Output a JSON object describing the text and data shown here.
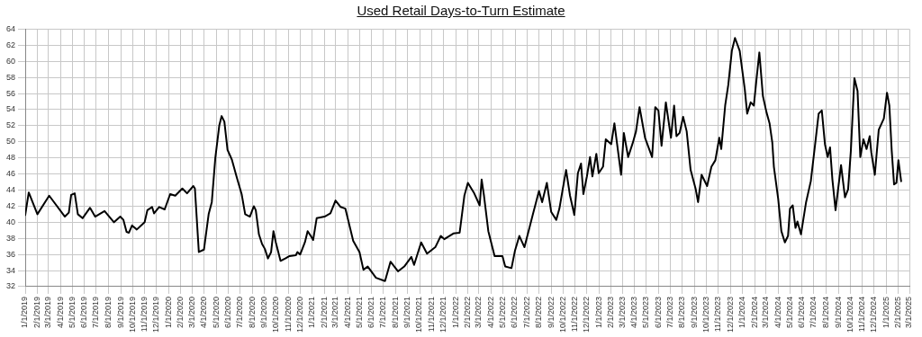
{
  "chart_data": {
    "type": "line",
    "title": "Used Retail Days-to-Turn Estimate",
    "x": [
      "2019-01-01",
      "2019-01-10",
      "2019-02-01",
      "2019-03-03",
      "2019-04-12",
      "2019-04-22",
      "2019-04-28",
      "2019-05-07",
      "2019-05-15",
      "2019-05-27",
      "2019-06-15",
      "2019-06-28",
      "2019-07-22",
      "2019-08-15",
      "2019-08-31",
      "2019-09-08",
      "2019-09-16",
      "2019-09-22",
      "2019-09-30",
      "2019-10-12",
      "2019-11-01",
      "2019-11-08",
      "2019-11-20",
      "2019-11-25",
      "2019-12-08",
      "2019-12-22",
      "2020-01-05",
      "2020-01-18",
      "2020-02-05",
      "2020-02-17",
      "2020-03-04",
      "2020-03-08",
      "2020-03-18",
      "2020-03-31",
      "2020-04-12",
      "2020-04-20",
      "2020-04-29",
      "2020-05-09",
      "2020-05-15",
      "2020-05-22",
      "2020-05-30",
      "2020-06-10",
      "2020-06-23",
      "2020-07-05",
      "2020-07-14",
      "2020-07-26",
      "2020-08-05",
      "2020-08-10",
      "2020-08-18",
      "2020-08-26",
      "2020-09-02",
      "2020-09-10",
      "2020-09-18",
      "2020-09-24",
      "2020-09-30",
      "2020-10-12",
      "2020-10-24",
      "2020-11-04",
      "2020-11-20",
      "2020-11-24",
      "2020-12-01",
      "2020-12-13",
      "2020-12-20",
      "2020-12-28",
      "2021-01-03",
      "2021-01-12",
      "2021-02-01",
      "2021-02-16",
      "2021-03-01",
      "2021-03-14",
      "2021-03-26",
      "2021-04-15",
      "2021-05-01",
      "2021-05-11",
      "2021-05-22",
      "2021-06-12",
      "2021-07-05",
      "2021-07-19",
      "2021-08-07",
      "2021-08-23",
      "2021-09-10",
      "2021-09-17",
      "2021-10-05",
      "2021-10-20",
      "2021-11-10",
      "2021-11-24",
      "2021-12-03",
      "2021-12-26",
      "2022-01-11",
      "2022-01-23",
      "2022-02-01",
      "2022-02-16",
      "2022-03-03",
      "2022-03-08",
      "2022-03-14",
      "2022-03-25",
      "2022-04-10",
      "2022-04-30",
      "2022-05-07",
      "2022-05-23",
      "2022-06-01",
      "2022-06-12",
      "2022-06-25",
      "2022-07-16",
      "2022-08-01",
      "2022-08-09",
      "2022-08-21",
      "2022-09-01",
      "2022-09-14",
      "2022-09-22",
      "2022-09-29",
      "2022-10-09",
      "2022-10-19",
      "2022-10-30",
      "2022-11-08",
      "2022-11-16",
      "2022-11-22",
      "2022-12-01",
      "2022-12-09",
      "2022-12-15",
      "2022-12-25",
      "2022-12-31",
      "2023-01-11",
      "2023-01-18",
      "2023-02-01",
      "2023-02-09",
      "2023-02-26",
      "2023-03-05",
      "2023-03-16",
      "2023-03-28",
      "2023-04-05",
      "2023-04-14",
      "2023-04-28",
      "2023-05-16",
      "2023-05-24",
      "2023-06-01",
      "2023-06-09",
      "2023-06-20",
      "2023-07-03",
      "2023-07-11",
      "2023-07-17",
      "2023-07-25",
      "2023-08-03",
      "2023-08-12",
      "2023-08-22",
      "2023-09-04",
      "2023-09-10",
      "2023-09-19",
      "2023-10-03",
      "2023-10-14",
      "2023-10-24",
      "2023-11-03",
      "2023-11-08",
      "2023-11-18",
      "2023-11-26",
      "2023-12-05",
      "2023-12-13",
      "2023-12-25",
      "2024-01-07",
      "2024-01-13",
      "2024-01-22",
      "2024-01-30",
      "2024-02-06",
      "2024-02-13",
      "2024-02-22",
      "2024-03-02",
      "2024-03-10",
      "2024-03-17",
      "2024-03-21",
      "2024-04-01",
      "2024-04-09",
      "2024-04-18",
      "2024-04-26",
      "2024-05-01",
      "2024-05-08",
      "2024-05-15",
      "2024-05-20",
      "2024-05-29",
      "2024-06-11",
      "2024-06-23",
      "2024-07-05",
      "2024-07-13",
      "2024-07-21",
      "2024-07-29",
      "2024-08-05",
      "2024-08-11",
      "2024-08-17",
      "2024-08-25",
      "2024-09-08",
      "2024-09-18",
      "2024-09-26",
      "2024-10-03",
      "2024-10-12",
      "2024-10-20",
      "2024-10-27",
      "2024-11-04",
      "2024-11-12",
      "2024-11-20",
      "2024-11-24",
      "2024-12-03",
      "2024-12-13",
      "2024-12-26",
      "2025-01-03",
      "2025-01-09",
      "2025-01-15",
      "2025-01-21",
      "2025-01-27",
      "2025-02-01",
      "2025-02-08"
    ],
    "series": [
      {
        "color": "#000000",
        "values": [
          40.9,
          43.7,
          41,
          43.3,
          40.7,
          41.2,
          43.4,
          43.6,
          41,
          40.5,
          41.8,
          40.7,
          41.4,
          40,
          40.7,
          40.3,
          38.8,
          38.7,
          39.6,
          39.1,
          40,
          41.5,
          41.9,
          41.1,
          41.9,
          41.6,
          43.5,
          43.3,
          44.2,
          43.6,
          44.5,
          44.2,
          36.3,
          36.6,
          41,
          42.5,
          48,
          52,
          53.2,
          52.5,
          49,
          47.8,
          45.5,
          43.5,
          41,
          40.7,
          42,
          41.5,
          38.5,
          37.3,
          36.7,
          35.5,
          36.3,
          38.9,
          37.5,
          35.2,
          35.5,
          35.8,
          35.9,
          36.3,
          36,
          37.5,
          38.9,
          38.3,
          37.8,
          40.5,
          40.7,
          41.1,
          42.7,
          41.9,
          41.7,
          37.7,
          36.3,
          34.1,
          34.5,
          33.1,
          32.7,
          35.1,
          33.9,
          34.5,
          35.7,
          34.7,
          37.5,
          36.1,
          36.9,
          38.3,
          37.9,
          38.6,
          38.7,
          43.3,
          44.9,
          43.7,
          42.1,
          45.3,
          43.3,
          38.9,
          35.8,
          35.8,
          34.5,
          34.3,
          36.5,
          38.3,
          36.9,
          40.9,
          43.9,
          42.5,
          44.9,
          41.3,
          40.3,
          41.7,
          43.7,
          46.5,
          43.3,
          40.9,
          46.1,
          47.3,
          43.5,
          45.7,
          48.1,
          45.7,
          48.5,
          46.1,
          46.9,
          50.3,
          49.7,
          52.3,
          45.9,
          51.1,
          48.1,
          49.9,
          51.3,
          54.3,
          50.5,
          48.1,
          54.3,
          53.9,
          49.5,
          54.9,
          50.5,
          54.5,
          50.7,
          51.1,
          53.1,
          51.3,
          46.5,
          44.1,
          42.5,
          45.9,
          44.5,
          46.9,
          47.7,
          50.5,
          49.1,
          54.5,
          57.1,
          61.3,
          62.9,
          61.3,
          56.5,
          53.5,
          54.9,
          54.5,
          57.9,
          61.1,
          55.7,
          53.7,
          52.3,
          49.9,
          46.9,
          42.9,
          38.9,
          37.5,
          38.3,
          41.7,
          42.1,
          39.3,
          40.1,
          38.5,
          42.5,
          45.1,
          50.1,
          53.5,
          53.9,
          49.7,
          48.1,
          49.3,
          45.3,
          41.5,
          47.1,
          43.1,
          44.1,
          48.9,
          57.9,
          56.3,
          48.1,
          50.3,
          49.1,
          50.7,
          48.7,
          45.9,
          51.5,
          52.9,
          56.1,
          54.5,
          48.9,
          44.7,
          44.9,
          47.7,
          45.1
        ]
      }
    ],
    "xlim": [
      "2019-01-01",
      "2025-03-01"
    ],
    "xticks": [
      {
        "value": "2019-01-01",
        "label": "1/1/2019"
      },
      {
        "value": "2019-02-01",
        "label": "2/1/2019"
      },
      {
        "value": "2019-03-01",
        "label": "3/1/2019"
      },
      {
        "value": "2019-04-01",
        "label": "4/1/2019"
      },
      {
        "value": "2019-05-01",
        "label": "5/1/2019"
      },
      {
        "value": "2019-06-01",
        "label": "6/1/2019"
      },
      {
        "value": "2019-07-01",
        "label": "7/1/2019"
      },
      {
        "value": "2019-08-01",
        "label": "8/1/2019"
      },
      {
        "value": "2019-09-01",
        "label": "9/1/2019"
      },
      {
        "value": "2019-10-01",
        "label": "10/1/2019"
      },
      {
        "value": "2019-11-01",
        "label": "11/1/2019"
      },
      {
        "value": "2019-12-01",
        "label": "12/1/2019"
      },
      {
        "value": "2020-01-01",
        "label": "1/1/2020"
      },
      {
        "value": "2020-02-01",
        "label": "2/1/2020"
      },
      {
        "value": "2020-03-01",
        "label": "3/1/2020"
      },
      {
        "value": "2020-04-01",
        "label": "4/1/2020"
      },
      {
        "value": "2020-05-01",
        "label": "5/1/2020"
      },
      {
        "value": "2020-06-01",
        "label": "6/1/2020"
      },
      {
        "value": "2020-07-01",
        "label": "7/1/2020"
      },
      {
        "value": "2020-08-01",
        "label": "8/1/2020"
      },
      {
        "value": "2020-09-01",
        "label": "9/1/2020"
      },
      {
        "value": "2020-10-01",
        "label": "10/1/2020"
      },
      {
        "value": "2020-11-01",
        "label": "11/1/2020"
      },
      {
        "value": "2020-12-01",
        "label": "12/1/2020"
      },
      {
        "value": "2021-01-01",
        "label": "1/1/2021"
      },
      {
        "value": "2021-02-01",
        "label": "2/1/2021"
      },
      {
        "value": "2021-03-01",
        "label": "3/1/2021"
      },
      {
        "value": "2021-04-01",
        "label": "4/1/2021"
      },
      {
        "value": "2021-05-01",
        "label": "5/1/2021"
      },
      {
        "value": "2021-06-01",
        "label": "6/1/2021"
      },
      {
        "value": "2021-07-01",
        "label": "7/1/2021"
      },
      {
        "value": "2021-08-01",
        "label": "8/1/2021"
      },
      {
        "value": "2021-09-01",
        "label": "9/1/2021"
      },
      {
        "value": "2021-10-01",
        "label": "10/1/2021"
      },
      {
        "value": "2021-11-01",
        "label": "11/1/2021"
      },
      {
        "value": "2021-12-01",
        "label": "12/1/2021"
      },
      {
        "value": "2022-01-01",
        "label": "1/1/2022"
      },
      {
        "value": "2022-02-01",
        "label": "2/1/2022"
      },
      {
        "value": "2022-03-01",
        "label": "3/1/2022"
      },
      {
        "value": "2022-04-01",
        "label": "4/1/2022"
      },
      {
        "value": "2022-05-01",
        "label": "5/1/2022"
      },
      {
        "value": "2022-06-01",
        "label": "6/1/2022"
      },
      {
        "value": "2022-07-01",
        "label": "7/1/2022"
      },
      {
        "value": "2022-08-01",
        "label": "8/1/2022"
      },
      {
        "value": "2022-09-01",
        "label": "9/1/2022"
      },
      {
        "value": "2022-10-01",
        "label": "10/1/2022"
      },
      {
        "value": "2022-11-01",
        "label": "11/1/2022"
      },
      {
        "value": "2022-12-01",
        "label": "12/1/2022"
      },
      {
        "value": "2023-01-01",
        "label": "1/1/2023"
      },
      {
        "value": "2023-02-01",
        "label": "2/1/2023"
      },
      {
        "value": "2023-03-01",
        "label": "3/1/2023"
      },
      {
        "value": "2023-04-01",
        "label": "4/1/2023"
      },
      {
        "value": "2023-05-01",
        "label": "5/1/2023"
      },
      {
        "value": "2023-06-01",
        "label": "6/1/2023"
      },
      {
        "value": "2023-07-01",
        "label": "7/1/2023"
      },
      {
        "value": "2023-08-01",
        "label": "8/1/2023"
      },
      {
        "value": "2023-09-01",
        "label": "9/1/2023"
      },
      {
        "value": "2023-10-01",
        "label": "10/1/2023"
      },
      {
        "value": "2023-11-01",
        "label": "11/1/2023"
      },
      {
        "value": "2023-12-01",
        "label": "12/1/2023"
      },
      {
        "value": "2024-01-01",
        "label": "1/1/2024"
      },
      {
        "value": "2024-02-01",
        "label": "2/1/2024"
      },
      {
        "value": "2024-03-01",
        "label": "3/1/2024"
      },
      {
        "value": "2024-04-01",
        "label": "4/1/2024"
      },
      {
        "value": "2024-05-01",
        "label": "5/1/2024"
      },
      {
        "value": "2024-06-01",
        "label": "6/1/2024"
      },
      {
        "value": "2024-07-01",
        "label": "7/1/2024"
      },
      {
        "value": "2024-08-01",
        "label": "8/1/2024"
      },
      {
        "value": "2024-09-01",
        "label": "9/1/2024"
      },
      {
        "value": "2024-10-01",
        "label": "10/1/2024"
      },
      {
        "value": "2024-11-01",
        "label": "11/1/2024"
      },
      {
        "value": "2024-12-01",
        "label": "12/1/2024"
      },
      {
        "value": "2025-01-01",
        "label": "1/1/2025"
      },
      {
        "value": "2025-02-01",
        "label": "2/1/2025"
      },
      {
        "value": "2025-03-01",
        "label": "3/1/2025"
      }
    ],
    "ylim": [
      32,
      64
    ],
    "yticks": [
      32,
      34,
      36,
      38,
      40,
      42,
      44,
      46,
      48,
      50,
      52,
      54,
      56,
      58,
      60,
      62,
      64
    ],
    "grid": true,
    "legend": false,
    "marker": "none",
    "line_style": "solid"
  }
}
